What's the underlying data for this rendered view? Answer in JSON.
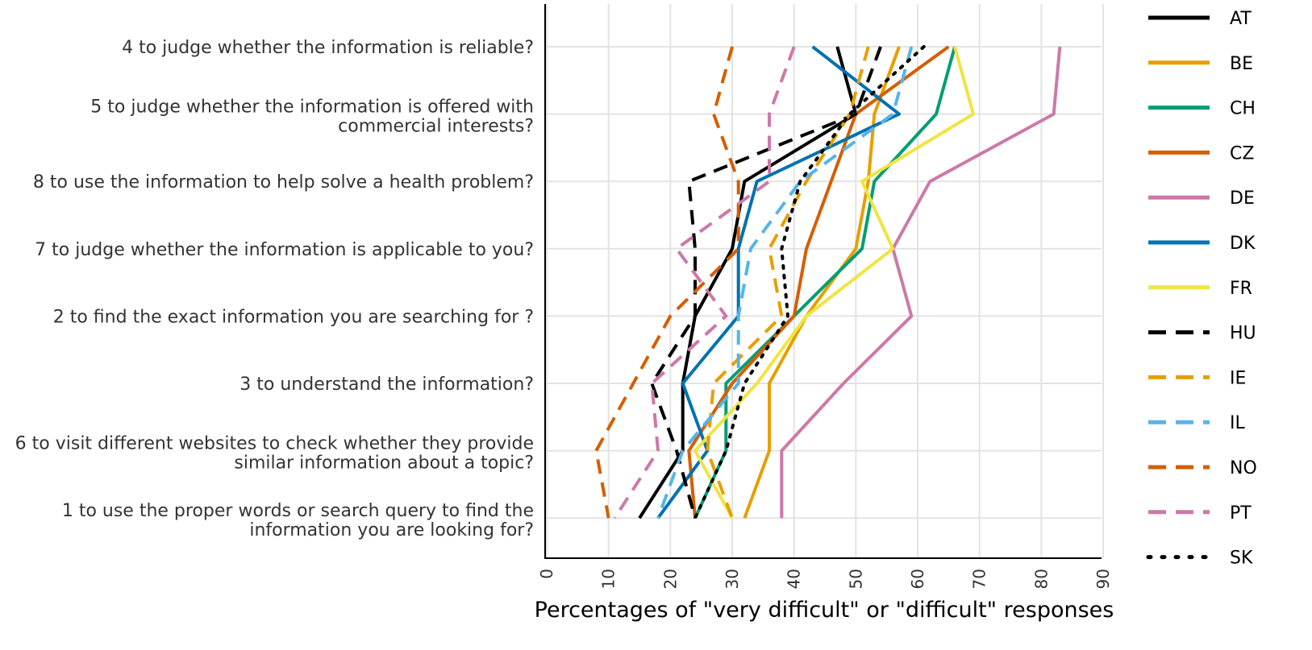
{
  "chart_data": {
    "type": "line",
    "xlabel": "Percentages of \"very difficult\" or \"difficult\" responses",
    "ylabel": "",
    "xlim": [
      0,
      90
    ],
    "xticks": [
      "0",
      "10",
      "20",
      "30",
      "40",
      "50",
      "60",
      "70",
      "80",
      "90"
    ],
    "grid": true,
    "legend_position": "right",
    "categories": [
      [
        "4 to judge whether the information is reliable?"
      ],
      [
        "5 to judge whether the information is offered with",
        "commercial interests?"
      ],
      [
        "8 to use the information to help solve a health problem?"
      ],
      [
        "7 to judge whether the information is applicable to you?"
      ],
      [
        "2 to find the exact information you are searching for ?"
      ],
      [
        "3 to understand the information?"
      ],
      [
        "6 to visit different websites to check whether they provide",
        "similar information about a topic?"
      ],
      [
        "1 to use the proper words or search query to find the",
        "information you are looking for?"
      ]
    ],
    "series": [
      {
        "name": "AT",
        "color": "#000000",
        "dash": "solid",
        "values": [
          47,
          50,
          32,
          30,
          24,
          22,
          22,
          15
        ]
      },
      {
        "name": "BE",
        "color": "#E69F00",
        "dash": "solid",
        "values": [
          57,
          53,
          52,
          50,
          42,
          36,
          36,
          32
        ]
      },
      {
        "name": "CH",
        "color": "#009E73",
        "dash": "solid",
        "values": [
          66,
          63,
          53,
          51,
          40,
          29,
          29,
          24
        ]
      },
      {
        "name": "CZ",
        "color": "#D55E00",
        "dash": "solid",
        "values": [
          65,
          50,
          46,
          42,
          40,
          30,
          23,
          24
        ]
      },
      {
        "name": "DE",
        "color": "#CC79A7",
        "dash": "solid",
        "values": [
          83,
          82,
          62,
          56,
          59,
          48,
          38,
          38
        ]
      },
      {
        "name": "DK",
        "color": "#0072B2",
        "dash": "solid",
        "values": [
          43,
          57,
          34,
          31,
          31,
          22,
          26,
          18
        ]
      },
      {
        "name": "FR",
        "color": "#F0E442",
        "dash": "solid",
        "values": [
          66,
          69,
          51,
          56,
          42,
          34,
          24,
          30
        ]
      },
      {
        "name": "HU",
        "color": "#000000",
        "dash": "long",
        "values": [
          54,
          50,
          23,
          24,
          24,
          17,
          21,
          24
        ]
      },
      {
        "name": "IE",
        "color": "#E69F00",
        "dash": "long",
        "values": [
          52,
          49,
          42,
          36,
          38,
          27,
          26,
          30
        ]
      },
      {
        "name": "IL",
        "color": "#56B4E9",
        "dash": "long",
        "values": [
          59,
          56,
          41,
          33,
          31,
          31,
          22,
          18
        ]
      },
      {
        "name": "NO",
        "color": "#D55E00",
        "dash": "long",
        "values": [
          30,
          27,
          31,
          31,
          20,
          14,
          8,
          10
        ]
      },
      {
        "name": "PT",
        "color": "#CC79A7",
        "dash": "long",
        "values": [
          40,
          36,
          36,
          21,
          29,
          17,
          18,
          11
        ]
      },
      {
        "name": "SK",
        "color": "#000000",
        "dash": "dotted",
        "values": [
          61,
          49,
          41,
          38,
          39,
          32,
          29,
          24
        ]
      }
    ]
  }
}
